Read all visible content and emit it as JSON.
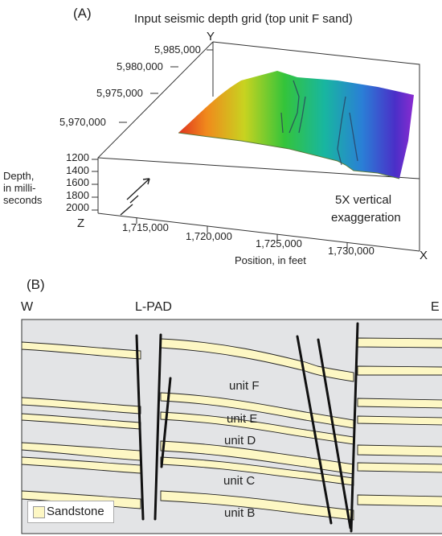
{
  "panel_a": {
    "tag": "(A)",
    "title": "Input seismic depth grid (top unit F sand)",
    "y_axis_letter": "Y",
    "x_axis_letter": "X",
    "z_axis_letter": "Z",
    "y_ticks": [
      "5,985,000",
      "5,980,000",
      "5,975,000",
      "5,970,000"
    ],
    "x_ticks": [
      "1,715,000",
      "1,720,000",
      "1,725,000",
      "1,730,000"
    ],
    "z_ticks": [
      "1200",
      "1400",
      "1600",
      "1800",
      "2000"
    ],
    "depth_label": [
      "Depth,",
      "in milli-",
      "seconds"
    ],
    "x_label": "Position, in feet",
    "exaggeration": [
      "5X vertical",
      "exaggeration"
    ],
    "surface_colors": [
      "#e0331f",
      "#f08a1c",
      "#c8d320",
      "#34c43a",
      "#18b6a0",
      "#2a7fd6",
      "#4a2fc8",
      "#8a2bd0"
    ]
  },
  "panel_b": {
    "tag": "(B)",
    "west_label": "W",
    "east_label": "E",
    "well_label": "L-PAD",
    "units": [
      "unit F",
      "unit E",
      "unit D",
      "unit C",
      "unit B"
    ],
    "legend_label": "Sandstone",
    "sand_color": "#fdf7c4",
    "background_color": "#e3e4e6"
  }
}
